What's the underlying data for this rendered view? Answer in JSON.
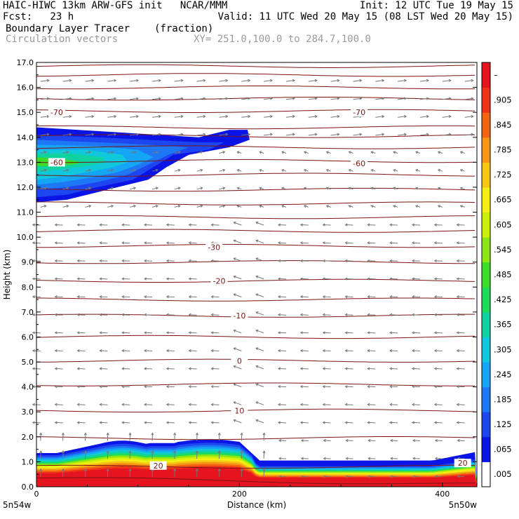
{
  "header": {
    "line1_left": "HAIC-HIWC 13km ARW-GFS init   NCAR/MMM",
    "line1_right": "Init: 12 UTC Tue 19 May 15",
    "line2_left": "Fcst:   23 h",
    "line2_right": "Valid: 11 UTC Wed 20 May 15 (08 LST Wed 20 May 15)",
    "field_name": "Boundary Layer Tracer",
    "field_units": "(fraction)",
    "vector_name": "Circulation vectors",
    "xy_range": "XY= 251.0,100.0 to 284.7,100.0"
  },
  "chart_data": {
    "type": "heatmap",
    "ylabel": "Height (km)",
    "xlabel": "Distance (km)",
    "xlim": [
      0,
      434
    ],
    "ylim": [
      0,
      17
    ],
    "x_ticks": [
      "0",
      "200",
      "400"
    ],
    "y_ticks": [
      "0.0",
      "1.0",
      "2.0",
      "3.0",
      "4.0",
      "5.0",
      "6.0",
      "7.0",
      "8.0",
      "9.0",
      "10.0",
      "11.0",
      "12.0",
      "13.0",
      "14.0",
      "15.0",
      "16.0",
      "17.0"
    ],
    "left_corner_label": "5n54w",
    "right_corner_label": "5n50w",
    "colorbar": {
      "labels": [
        ".005",
        ".065",
        ".125",
        ".185",
        ".245",
        ".305",
        ".365",
        ".425",
        ".485",
        ".545",
        ".605",
        ".665",
        ".725",
        ".785",
        ".845",
        ".905",
        "–"
      ],
      "colors": [
        "#ffffff",
        "#0a14e6",
        "#1e46f0",
        "#1e78f5",
        "#14a5f5",
        "#10c8dc",
        "#10d2a0",
        "#1edc5a",
        "#3cdc28",
        "#8ce614",
        "#cdf00a",
        "#f5f014",
        "#f5c814",
        "#f59614",
        "#f56414",
        "#f03218",
        "#e6141e"
      ]
    },
    "tracer_regions": [
      {
        "name": "upper plume",
        "x_range": [
          0,
          210
        ],
        "z_range": [
          11.4,
          14.4
        ],
        "peak": 0.245
      },
      {
        "name": "boundary layer",
        "x_range": [
          0,
          434
        ],
        "z_range": [
          0.0,
          1.9
        ],
        "peak": 1.0
      }
    ],
    "temperature_contours": [
      {
        "label": "-70",
        "z": 15.0
      },
      {
        "label": "-60",
        "z": 13.0
      },
      {
        "label": "-30",
        "z": 9.6
      },
      {
        "label": "-20",
        "z": 8.2
      },
      {
        "label": "-10",
        "z": 6.8
      },
      {
        "label": "0",
        "z": 5.0
      },
      {
        "label": "10",
        "z": 3.0
      },
      {
        "label": "20",
        "z": 0.8
      }
    ],
    "grid": false
  }
}
